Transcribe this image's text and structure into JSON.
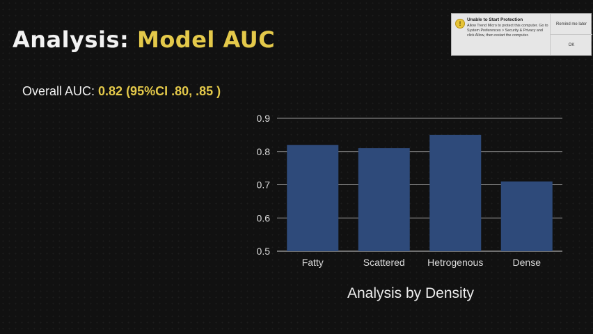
{
  "slide": {
    "title_prefix": "Analysis: ",
    "title_accent": "Model AUC",
    "overall_label": "Overall AUC: ",
    "overall_value": "0.82 (95%CI .80, .85 )"
  },
  "chart_caption": "Analysis by Density",
  "chart_data": {
    "type": "bar",
    "categories": [
      "Fatty",
      "Scattered",
      "Hetrogenous",
      "Dense"
    ],
    "values": [
      0.82,
      0.81,
      0.85,
      0.71
    ],
    "ylim": [
      0.5,
      0.9
    ],
    "yticks": [
      "0.5",
      "0.6",
      "0.7",
      "0.8",
      "0.9"
    ],
    "title": "",
    "xlabel": "Analysis by Density",
    "ylabel": "",
    "grid": true,
    "bar_color": "#2e4a7a"
  },
  "notification": {
    "title": "Unable to Start Protection",
    "body": "Allow Trend Micro to protect this computer. Go to System Preferences > Security & Privacy and click Allow, then restart the computer.",
    "remind_label": "Remind me later",
    "ok_label": "OK",
    "icon": "warning-icon"
  },
  "colors": {
    "accent": "#e4c94a",
    "bar": "#2e4a7a",
    "background": "#111111"
  }
}
